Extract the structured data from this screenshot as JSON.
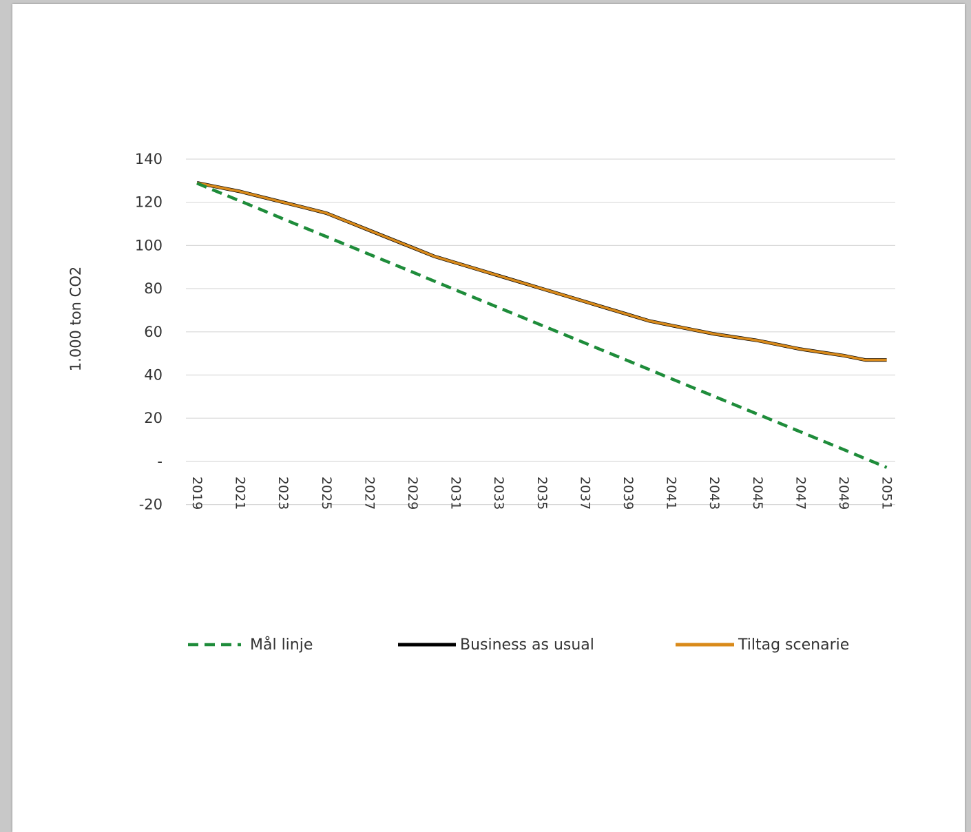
{
  "chart_data": {
    "type": "line",
    "title": "",
    "xlabel": "",
    "ylabel": "1.000 ton CO2",
    "ylim": [
      -20,
      140
    ],
    "yticks": [
      {
        "value": 140,
        "label": "140"
      },
      {
        "value": 120,
        "label": "120"
      },
      {
        "value": 100,
        "label": "100"
      },
      {
        "value": 80,
        "label": "80"
      },
      {
        "value": 60,
        "label": "60"
      },
      {
        "value": 40,
        "label": "40"
      },
      {
        "value": 20,
        "label": "20"
      },
      {
        "value": 0,
        "label": "-"
      },
      {
        "value": -20,
        "label": "-20"
      }
    ],
    "grid": true,
    "legend_position": "bottom",
    "x": [
      2019,
      2020,
      2021,
      2022,
      2023,
      2024,
      2025,
      2026,
      2027,
      2028,
      2029,
      2030,
      2031,
      2032,
      2033,
      2034,
      2035,
      2036,
      2037,
      2038,
      2039,
      2040,
      2041,
      2042,
      2043,
      2044,
      2045,
      2046,
      2047,
      2048,
      2049,
      2050,
      2051
    ],
    "xtick_labels": [
      "2019",
      "2021",
      "2023",
      "2025",
      "2027",
      "2029",
      "2031",
      "2033",
      "2035",
      "2037",
      "2039",
      "2041",
      "2043",
      "2045",
      "2047",
      "2049",
      "2051"
    ],
    "series": [
      {
        "name": "Mål linje",
        "color": "#1e8c3a",
        "dash": "dashed",
        "values": [
          128.8,
          124.7,
          120.6,
          116.5,
          112.3,
          108.2,
          104.1,
          100.0,
          95.9,
          91.8,
          87.7,
          83.5,
          79.4,
          75.3,
          71.2,
          67.1,
          63.0,
          58.9,
          54.8,
          50.7,
          46.6,
          42.5,
          38.3,
          34.2,
          30.1,
          26.0,
          21.9,
          17.8,
          13.7,
          9.6,
          5.5,
          1.3,
          -2.8
        ]
      },
      {
        "name": "Business as usual",
        "color": "#000000",
        "dash": "solid",
        "values": [
          129,
          127,
          125,
          122.5,
          120,
          117.5,
          115,
          111,
          107,
          103,
          99,
          95,
          92,
          89,
          86,
          83,
          80,
          77,
          74,
          71,
          68,
          65,
          63,
          61,
          59,
          57.5,
          56,
          54,
          52,
          50.5,
          49,
          47,
          47
        ]
      },
      {
        "name": "Tiltag scenarie",
        "color": "#d98a1a",
        "dash": "solid",
        "values": [
          129,
          127,
          125,
          122.5,
          120,
          117.5,
          115,
          111,
          107,
          103,
          99,
          95,
          92,
          89,
          86,
          83,
          80,
          77,
          74,
          71,
          68,
          65,
          63,
          61,
          59,
          57.5,
          56,
          54,
          52,
          50.5,
          49,
          47,
          47
        ]
      }
    ]
  }
}
